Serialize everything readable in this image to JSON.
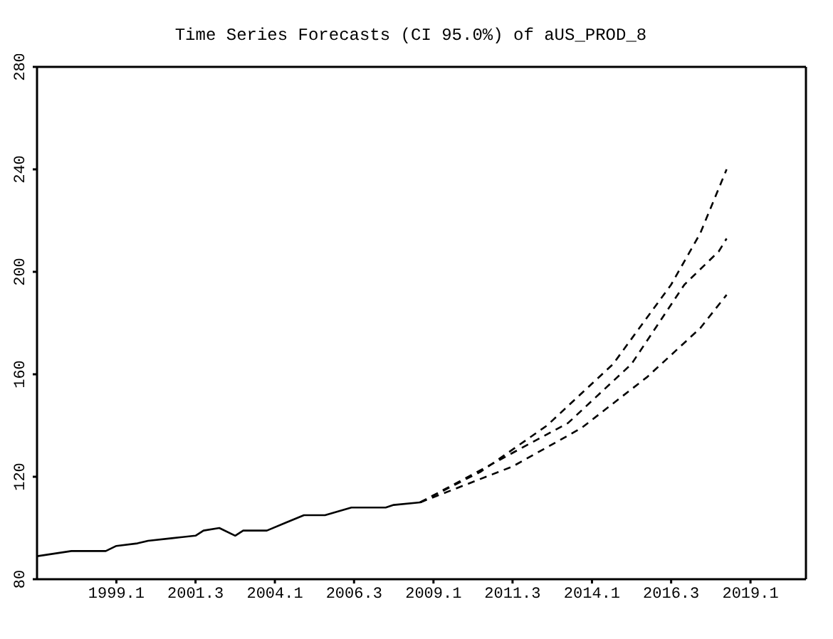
{
  "chart_data": {
    "type": "line",
    "title": "Time Series Forecasts (CI 95.0%) of aUS_PROD_8",
    "xlim": [
      "1996-07",
      "2020-10"
    ],
    "xticks": [
      {
        "value": "1999-01",
        "label": "1999.1"
      },
      {
        "value": "2001-07",
        "label": "2001.3"
      },
      {
        "value": "2004-01",
        "label": "2004.1"
      },
      {
        "value": "2006-07",
        "label": "2006.3"
      },
      {
        "value": "2009-01",
        "label": "2009.1"
      },
      {
        "value": "2011-07",
        "label": "2011.3"
      },
      {
        "value": "2014-01",
        "label": "2014.1"
      },
      {
        "value": "2016-07",
        "label": "2016.3"
      },
      {
        "value": "2019-01",
        "label": "2019.1"
      }
    ],
    "ylim": [
      80,
      280
    ],
    "yticks": [
      80,
      120,
      160,
      200,
      240,
      280
    ],
    "legend": false,
    "marker": "none",
    "series": [
      {
        "color": "#000000",
        "line_style": "solid",
        "x": [
          "1996-07",
          "1997-08",
          "1998-09",
          "1999-01",
          "1999-09",
          "2000-01",
          "2000-10",
          "2001-07",
          "2001-10",
          "2002-04",
          "2002-10",
          "2003-01",
          "2003-10",
          "2004-05",
          "2004-12",
          "2005-08",
          "2006-06",
          "2007-07",
          "2007-10",
          "2008-08"
        ],
        "values": [
          89,
          91,
          91,
          93,
          94,
          95,
          96,
          97,
          99,
          100,
          97,
          99,
          99,
          102,
          105,
          105,
          108,
          108,
          109,
          110
        ]
      },
      {
        "color": "#000000",
        "line_style": "dashed",
        "x": [
          "2008-08",
          "2010-07",
          "2012-08",
          "2014-09",
          "2016-07",
          "2017-06",
          "2018-04"
        ],
        "values": [
          110,
          122,
          140,
          164,
          195,
          215,
          240
        ]
      },
      {
        "color": "#000000",
        "line_style": "dashed",
        "x": [
          "2008-08",
          "2011-01",
          "2013-04",
          "2015-04",
          "2016-12",
          "2018-01",
          "2018-04"
        ],
        "values": [
          110,
          126,
          141,
          164,
          195,
          208,
          213
        ]
      },
      {
        "color": "#000000",
        "line_style": "dashed",
        "x": [
          "2008-08",
          "2011-07",
          "2013-09",
          "2015-10",
          "2017-06",
          "2018-04"
        ],
        "values": [
          110,
          124,
          139,
          159,
          178,
          191
        ]
      }
    ]
  }
}
